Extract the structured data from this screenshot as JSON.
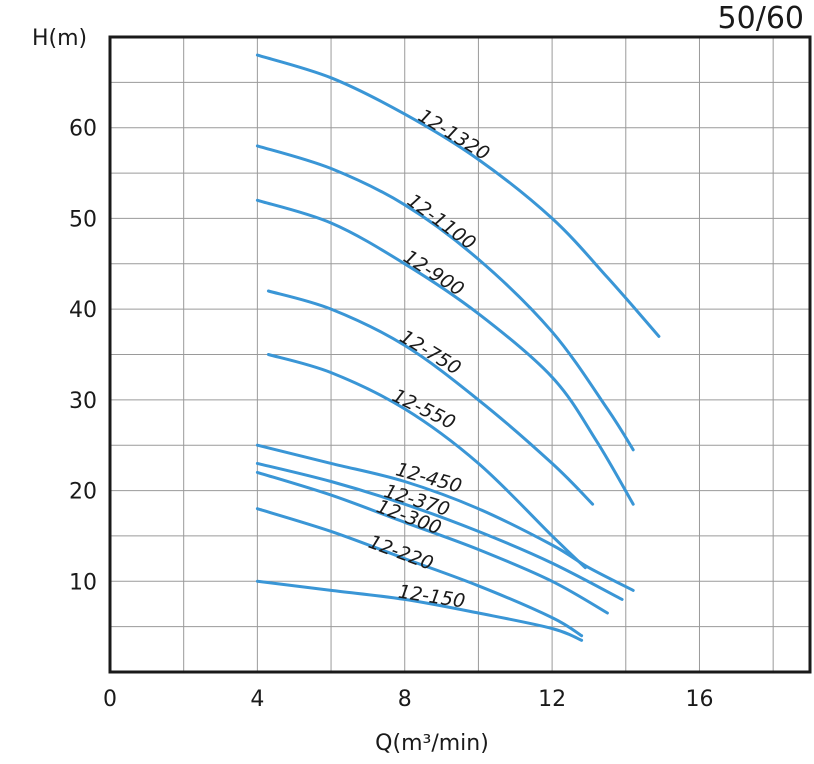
{
  "chart_data": {
    "type": "line",
    "corner_label": "50/60",
    "ylabel": "H(m)",
    "xlabel": "Q(m³/min)",
    "xlim": [
      0,
      19
    ],
    "ylim": [
      0,
      70
    ],
    "x_ticks": [
      "0",
      "4",
      "8",
      "12",
      "16"
    ],
    "y_ticks": [
      "10",
      "20",
      "30",
      "40",
      "50",
      "60"
    ],
    "grid": true,
    "line_color": "#3a96d6",
    "series": [
      {
        "name": "12-1320",
        "x": [
          4,
          6,
          8,
          10,
          12,
          13.5,
          14.9
        ],
        "y": [
          68,
          65.5,
          61.5,
          56.5,
          50,
          43.5,
          37
        ]
      },
      {
        "name": "12-1100",
        "x": [
          4,
          6,
          8,
          10,
          12,
          13.5,
          14.2
        ],
        "y": [
          58,
          55.5,
          51.5,
          45.5,
          37.5,
          29,
          24.5
        ]
      },
      {
        "name": "12-900",
        "x": [
          4,
          6,
          8,
          10,
          12,
          13.2,
          14.2
        ],
        "y": [
          52,
          49.5,
          45,
          39.5,
          32.5,
          25.5,
          18.5
        ]
      },
      {
        "name": "12-750",
        "x": [
          4.3,
          6,
          8,
          10,
          12,
          13.1
        ],
        "y": [
          42,
          40,
          36,
          30,
          23,
          18.5
        ]
      },
      {
        "name": "12-550",
        "x": [
          4.3,
          6,
          8,
          10,
          12,
          12.9
        ],
        "y": [
          35,
          33,
          29,
          23,
          15,
          11.5
        ]
      },
      {
        "name": "12-450",
        "x": [
          4,
          6,
          8,
          10,
          12,
          13,
          14.2
        ],
        "y": [
          25,
          23,
          21,
          18,
          14,
          11.5,
          9
        ]
      },
      {
        "name": "12-370",
        "x": [
          4,
          6,
          8,
          10,
          12,
          13.9
        ],
        "y": [
          23,
          21,
          18.5,
          15.5,
          12,
          8
        ]
      },
      {
        "name": "12-300",
        "x": [
          4,
          6,
          8,
          10,
          12,
          13.5
        ],
        "y": [
          22,
          19.5,
          16.5,
          13.5,
          10,
          6.5
        ]
      },
      {
        "name": "12-220",
        "x": [
          4,
          6,
          8,
          10,
          12,
          12.8
        ],
        "y": [
          18,
          15.5,
          12.5,
          9.5,
          6,
          4
        ]
      },
      {
        "name": "12-150",
        "x": [
          4,
          6,
          8,
          10,
          12,
          12.8
        ],
        "y": [
          10,
          9,
          8,
          6.5,
          4.8,
          3.5
        ]
      }
    ]
  }
}
